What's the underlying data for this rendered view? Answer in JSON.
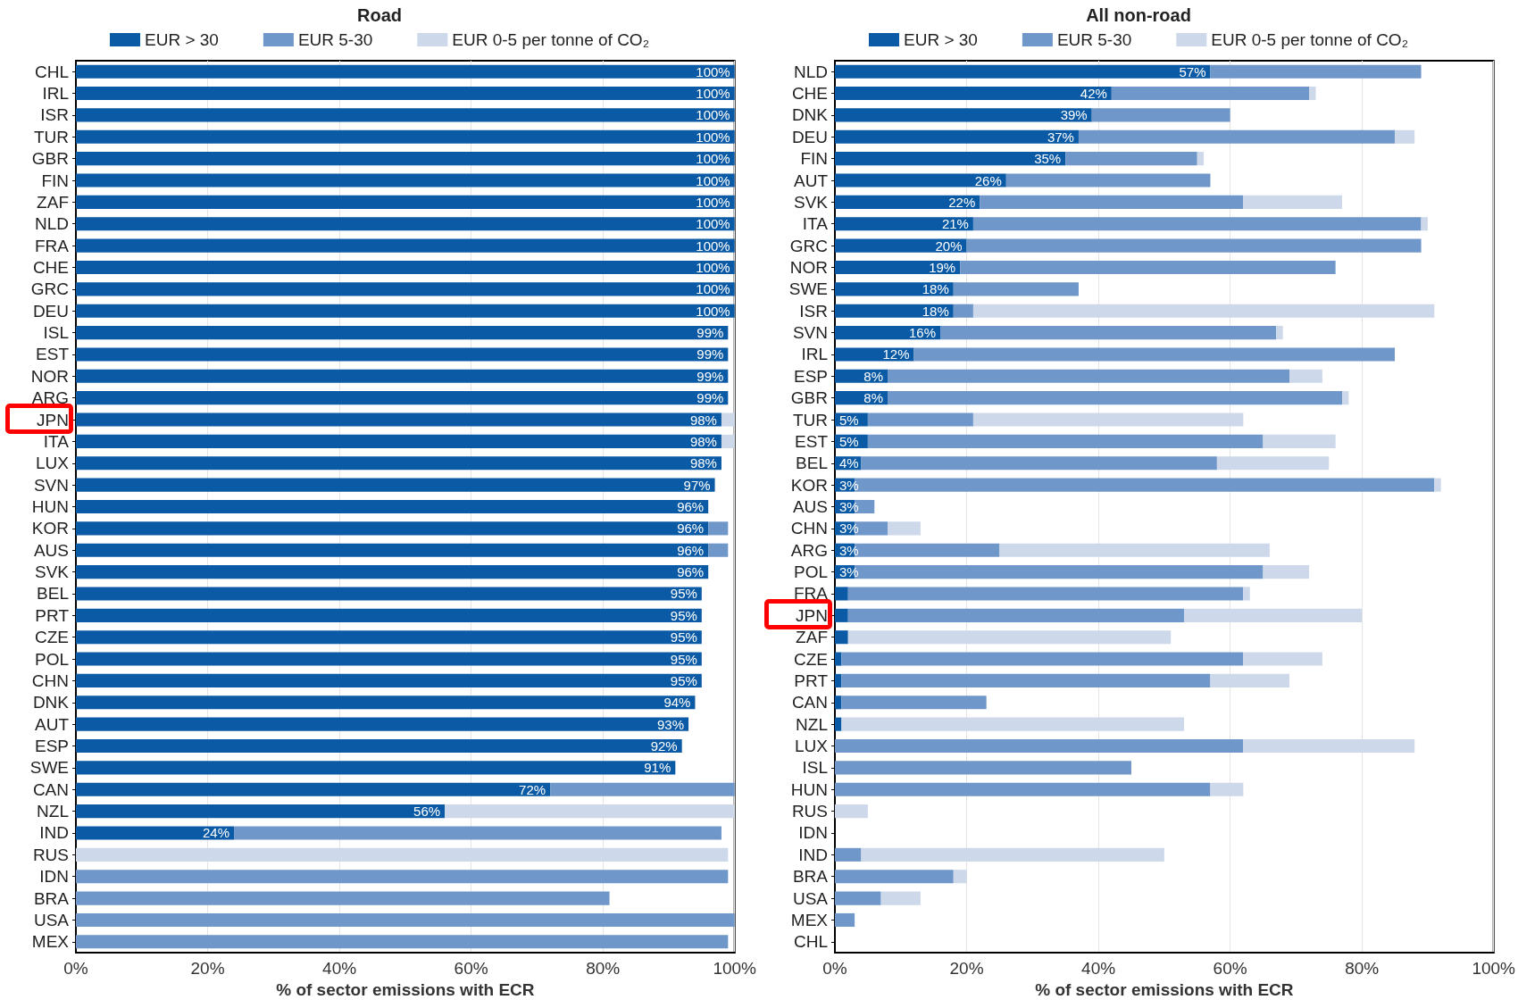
{
  "chart_data": [
    {
      "type": "bar",
      "orientation": "horizontal",
      "stacked": true,
      "title": "Road",
      "xlabel": "% of sector emissions with ECR",
      "categories": [
        "CHL",
        "IRL",
        "ISR",
        "TUR",
        "GBR",
        "FIN",
        "ZAF",
        "NLD",
        "FRA",
        "CHE",
        "GRC",
        "DEU",
        "ISL",
        "EST",
        "NOR",
        "ARG",
        "JPN",
        "ITA",
        "LUX",
        "SVN",
        "HUN",
        "KOR",
        "AUS",
        "SVK",
        "BEL",
        "PRT",
        "CZE",
        "POL",
        "CHN",
        "DNK",
        "AUT",
        "ESP",
        "SWE",
        "CAN",
        "NZL",
        "IND",
        "RUS",
        "IDN",
        "BRA",
        "USA",
        "MEX"
      ],
      "series": [
        {
          "name": "EUR > 30",
          "color": "#0a5aa5",
          "values": [
            100,
            100,
            100,
            100,
            100,
            100,
            100,
            100,
            100,
            100,
            100,
            100,
            99,
            99,
            99,
            99,
            98,
            98,
            98,
            97,
            96,
            96,
            96,
            96,
            95,
            95,
            95,
            95,
            95,
            94,
            93,
            92,
            91,
            72,
            56,
            24,
            0,
            0,
            0,
            0,
            0
          ],
          "value_labels": [
            "100%",
            "100%",
            "100%",
            "100%",
            "100%",
            "100%",
            "100%",
            "100%",
            "100%",
            "100%",
            "100%",
            "100%",
            "99%",
            "99%",
            "99%",
            "99%",
            "98%",
            "98%",
            "98%",
            "97%",
            "96%",
            "96%",
            "96%",
            "96%",
            "95%",
            "95%",
            "95%",
            "95%",
            "95%",
            "94%",
            "93%",
            "92%",
            "91%",
            "72%",
            "56%",
            "24%",
            null,
            null,
            null,
            null,
            null
          ]
        },
        {
          "name": "EUR 5-30",
          "color": "#6f97c9",
          "values": [
            0,
            0,
            0,
            0,
            0,
            0,
            0,
            0,
            0,
            0,
            0,
            0,
            0,
            0,
            0,
            0,
            0,
            0,
            0,
            0,
            0,
            3,
            3,
            0,
            0,
            0,
            0,
            0,
            0,
            0,
            0,
            0,
            0,
            28,
            0,
            74,
            0,
            99,
            81,
            100,
            99
          ]
        },
        {
          "name": "EUR 0-5 per tonne of CO₂",
          "color": "#cdd8ea",
          "values": [
            0,
            0,
            0,
            0,
            0,
            0,
            0,
            0,
            0,
            0,
            0,
            0,
            0,
            0,
            0,
            0,
            2,
            2,
            0,
            0,
            0,
            0,
            0,
            0,
            0,
            0,
            0,
            0,
            0,
            0,
            0,
            0,
            0,
            0,
            44,
            0,
            99,
            0,
            0,
            0,
            0
          ]
        }
      ],
      "xlim": [
        0,
        100
      ],
      "xticks": [
        {
          "value": 0,
          "label": "0%"
        },
        {
          "value": 20,
          "label": "20%"
        },
        {
          "value": 40,
          "label": "40%"
        },
        {
          "value": 60,
          "label": "60%"
        },
        {
          "value": 80,
          "label": "80%"
        },
        {
          "value": 100,
          "label": "100%"
        }
      ],
      "grid": "x",
      "legend": "top"
    },
    {
      "type": "bar",
      "orientation": "horizontal",
      "stacked": true,
      "title": "All non-road",
      "xlabel": "% of sector emissions with ECR",
      "categories": [
        "NLD",
        "CHE",
        "DNK",
        "DEU",
        "FIN",
        "AUT",
        "SVK",
        "ITA",
        "GRC",
        "NOR",
        "SWE",
        "ISR",
        "SVN",
        "IRL",
        "ESP",
        "GBR",
        "TUR",
        "EST",
        "BEL",
        "KOR",
        "AUS",
        "CHN",
        "ARG",
        "POL",
        "FRA",
        "JPN",
        "ZAF",
        "CZE",
        "PRT",
        "CAN",
        "NZL",
        "LUX",
        "ISL",
        "HUN",
        "RUS",
        "IDN",
        "IND",
        "BRA",
        "USA",
        "MEX",
        "CHL"
      ],
      "series": [
        {
          "name": "EUR > 30",
          "color": "#0a5aa5",
          "values": [
            57,
            42,
            39,
            37,
            35,
            26,
            22,
            21,
            20,
            19,
            18,
            18,
            16,
            12,
            8,
            8,
            5,
            5,
            4,
            3,
            3,
            3,
            3,
            3,
            2,
            2,
            2,
            1,
            1,
            1,
            1,
            0,
            0,
            0,
            0,
            0,
            0,
            0,
            0,
            0,
            0
          ],
          "value_labels": [
            "57%",
            "42%",
            "39%",
            "37%",
            "35%",
            "26%",
            "22%",
            "21%",
            "20%",
            "19%",
            "18%",
            "18%",
            "16%",
            "12%",
            "8%",
            "8%",
            "5%",
            "5%",
            "4%",
            "3%",
            "3%",
            "3%",
            "3%",
            "3%",
            null,
            null,
            null,
            null,
            null,
            null,
            null,
            null,
            null,
            null,
            null,
            null,
            null,
            null,
            null,
            null,
            null
          ]
        },
        {
          "name": "EUR 5-30",
          "color": "#6f97c9",
          "values": [
            32,
            30,
            21,
            48,
            20,
            31,
            40,
            68,
            69,
            57,
            19,
            3,
            51,
            73,
            61,
            69,
            16,
            60,
            54,
            88,
            3,
            5,
            22,
            62,
            60,
            51,
            0,
            61,
            56,
            22,
            0,
            62,
            45,
            57,
            0,
            0,
            4,
            18,
            7,
            3,
            0
          ]
        },
        {
          "name": "EUR 0-5 per tonne of CO₂",
          "color": "#cdd8ea",
          "values": [
            0,
            1,
            0,
            3,
            1,
            0,
            15,
            1,
            0,
            0,
            0,
            70,
            1,
            0,
            5,
            1,
            41,
            11,
            17,
            1,
            0,
            5,
            41,
            7,
            1,
            27,
            49,
            12,
            12,
            0,
            52,
            26,
            0,
            5,
            5,
            0,
            46,
            2,
            6,
            0,
            0
          ]
        }
      ],
      "xlim": [
        0,
        100
      ],
      "xticks": [
        {
          "value": 0,
          "label": "0%"
        },
        {
          "value": 20,
          "label": "20%"
        },
        {
          "value": 40,
          "label": "40%"
        },
        {
          "value": 60,
          "label": "60%"
        },
        {
          "value": 80,
          "label": "80%"
        },
        {
          "value": 100,
          "label": "100%"
        }
      ],
      "grid": "x",
      "legend": "top"
    }
  ]
}
